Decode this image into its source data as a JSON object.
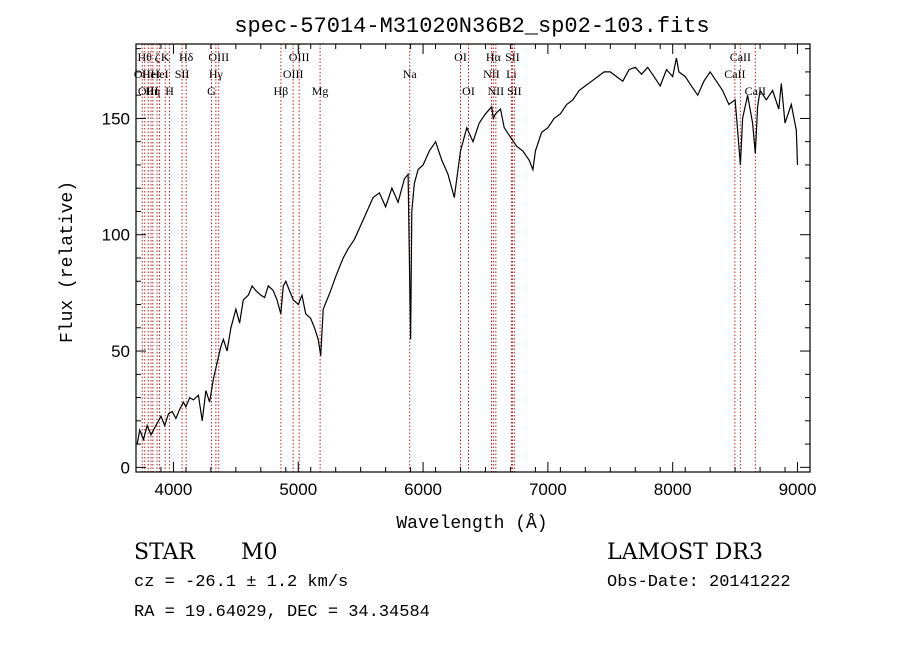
{
  "chart_data": {
    "type": "line",
    "title": "spec-57014-M31020N36B2_sp02-103.fits",
    "xlabel": "Wavelength (Å)",
    "ylabel": "Flux (relative)",
    "xlim": [
      3700,
      9100
    ],
    "ylim": [
      -2,
      182
    ],
    "xticks": [
      4000,
      5000,
      6000,
      7000,
      8000,
      9000
    ],
    "yticks": [
      0,
      50,
      100,
      150
    ],
    "grid": false,
    "series": [
      {
        "name": "flux",
        "x": [
          3710,
          3730,
          3760,
          3790,
          3820,
          3850,
          3880,
          3900,
          3930,
          3960,
          3990,
          4020,
          4050,
          4080,
          4100,
          4130,
          4160,
          4200,
          4230,
          4260,
          4290,
          4320,
          4350,
          4380,
          4400,
          4430,
          4460,
          4500,
          4530,
          4560,
          4600,
          4630,
          4660,
          4700,
          4730,
          4760,
          4800,
          4830,
          4860,
          4880,
          4900,
          4930,
          4960,
          5000,
          5030,
          5060,
          5100,
          5130,
          5160,
          5180,
          5200,
          5230,
          5260,
          5300,
          5330,
          5360,
          5400,
          5450,
          5500,
          5550,
          5600,
          5650,
          5700,
          5750,
          5800,
          5850,
          5880,
          5900,
          5910,
          5930,
          5960,
          6000,
          6050,
          6100,
          6150,
          6200,
          6250,
          6300,
          6350,
          6400,
          6450,
          6500,
          6550,
          6563,
          6580,
          6620,
          6650,
          6700,
          6750,
          6800,
          6850,
          6880,
          6900,
          6950,
          7000,
          7050,
          7100,
          7150,
          7200,
          7250,
          7300,
          7350,
          7400,
          7450,
          7500,
          7550,
          7600,
          7650,
          7700,
          7750,
          7800,
          7850,
          7900,
          7950,
          8000,
          8030,
          8050,
          8100,
          8150,
          8200,
          8250,
          8300,
          8350,
          8400,
          8450,
          8500,
          8520,
          8542,
          8560,
          8600,
          8640,
          8662,
          8680,
          8700,
          8750,
          8800,
          8850,
          8870,
          8900,
          8950,
          8990,
          9000
        ],
        "y": [
          10,
          16,
          12,
          18,
          14,
          17,
          20,
          22,
          18,
          23,
          24,
          21,
          25,
          28,
          26,
          30,
          29,
          31,
          20,
          33,
          28,
          38,
          45,
          52,
          55,
          50,
          60,
          68,
          62,
          72,
          74,
          78,
          76,
          74,
          73,
          78,
          76,
          72,
          66,
          78,
          80,
          76,
          72,
          70,
          74,
          66,
          64,
          60,
          55,
          48,
          68,
          72,
          76,
          82,
          86,
          90,
          94,
          98,
          104,
          110,
          116,
          118,
          112,
          120,
          114,
          124,
          126,
          55,
          110,
          122,
          128,
          130,
          136,
          140,
          132,
          126,
          116,
          136,
          146,
          140,
          148,
          152,
          155,
          150,
          152,
          154,
          146,
          142,
          138,
          136,
          132,
          128,
          136,
          144,
          146,
          150,
          152,
          156,
          158,
          162,
          164,
          166,
          168,
          170,
          170,
          168,
          166,
          171,
          172,
          169,
          172,
          168,
          164,
          171,
          168,
          176,
          170,
          168,
          164,
          160,
          166,
          170,
          166,
          162,
          156,
          158,
          145,
          130,
          150,
          160,
          148,
          135,
          155,
          162,
          158,
          162,
          154,
          165,
          148,
          156,
          145,
          130
        ],
        "color": "#000000"
      }
    ],
    "line_markers": [
      {
        "wavelength": 3750,
        "label": "OII",
        "row": 1
      },
      {
        "wavelength": 3770,
        "label": "Hθ",
        "row": 0
      },
      {
        "wavelength": 3798,
        "label": "OIII",
        "row": 2
      },
      {
        "wavelength": 3820,
        "label": "HeI",
        "row": 1
      },
      {
        "wavelength": 3835,
        "label": "Hη",
        "row": 2
      },
      {
        "wavelength": 3869,
        "label": "ζ",
        "row": 0
      },
      {
        "wavelength": 3889,
        "label": "HeI",
        "row": 1
      },
      {
        "wavelength": 3934,
        "label": "K",
        "row": 0
      },
      {
        "wavelength": 3969,
        "label": "H",
        "row": 2
      },
      {
        "wavelength": 4069,
        "label": "SII",
        "row": 1
      },
      {
        "wavelength": 4102,
        "label": "Hδ",
        "row": 0
      },
      {
        "wavelength": 4305,
        "label": "G",
        "row": 2
      },
      {
        "wavelength": 4340,
        "label": "Hγ",
        "row": 1
      },
      {
        "wavelength": 4363,
        "label": "OIII",
        "row": 0
      },
      {
        "wavelength": 4861,
        "label": "Hβ",
        "row": 2
      },
      {
        "wavelength": 4959,
        "label": "OIII",
        "row": 1
      },
      {
        "wavelength": 5007,
        "label": "OIII",
        "row": 0
      },
      {
        "wavelength": 5175,
        "label": "Mg",
        "row": 2
      },
      {
        "wavelength": 5893,
        "label": "Na",
        "row": 1
      },
      {
        "wavelength": 6300,
        "label": "OI",
        "row": 0
      },
      {
        "wavelength": 6364,
        "label": "OI",
        "row": 2
      },
      {
        "wavelength": 6548,
        "label": "NII",
        "row": 1
      },
      {
        "wavelength": 6563,
        "label": "Hα",
        "row": 0
      },
      {
        "wavelength": 6583,
        "label": "NII",
        "row": 2
      },
      {
        "wavelength": 6708,
        "label": "Li",
        "row": 1
      },
      {
        "wavelength": 6716,
        "label": "SII",
        "row": 0
      },
      {
        "wavelength": 6731,
        "label": "SII",
        "row": 2
      },
      {
        "wavelength": 8498,
        "label": "CaII",
        "row": 1
      },
      {
        "wavelength": 8542,
        "label": "CaII",
        "row": 0
      },
      {
        "wavelength": 8662,
        "label": "CaII",
        "row": 2
      }
    ],
    "marker_color": "#b22222"
  },
  "info": {
    "object_class": "STAR",
    "subclass": "M0",
    "survey": "LAMOST DR3",
    "redshift": "cz = -26.1 ± 1.2 km/s",
    "obs_date": "Obs-Date: 20141222",
    "coords": "RA =  19.64029, DEC =  34.34584"
  }
}
